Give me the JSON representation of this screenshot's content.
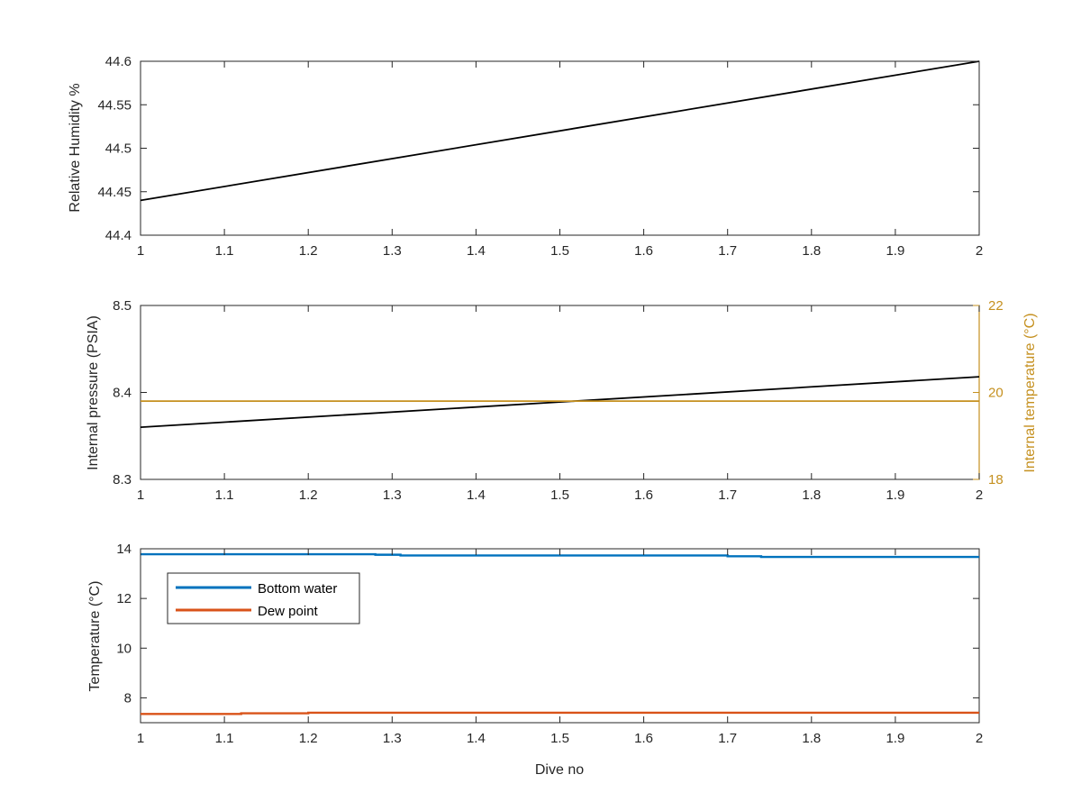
{
  "chart_data": [
    {
      "type": "line",
      "xlabel": "",
      "ylabel": "Relative Humidity %",
      "xlim": [
        1,
        2
      ],
      "ylim": [
        44.4,
        44.6
      ],
      "xticks": [
        "1",
        "1.1",
        "1.2",
        "1.3",
        "1.4",
        "1.5",
        "1.6",
        "1.7",
        "1.8",
        "1.9",
        "2"
      ],
      "yticks": [
        "44.4",
        "44.45",
        "44.5",
        "44.55",
        "44.6"
      ],
      "grid": false,
      "legend": null,
      "series": [
        {
          "color": "#000000",
          "x": [
            1,
            2
          ],
          "y": [
            44.44,
            44.6
          ]
        }
      ]
    },
    {
      "type": "line",
      "xlabel": "",
      "ylabel": "Internal pressure (PSIA)",
      "ylabel_right": "Internal temperature (°C)",
      "xlim": [
        1,
        2
      ],
      "ylim": [
        8.3,
        8.5
      ],
      "ylim_right": [
        18,
        22
      ],
      "xticks": [
        "1",
        "1.1",
        "1.2",
        "1.3",
        "1.4",
        "1.5",
        "1.6",
        "1.7",
        "1.8",
        "1.9",
        "2"
      ],
      "yticks": [
        "8.3",
        "8.4",
        "8.5"
      ],
      "yticks_right": [
        "18",
        "20",
        "22"
      ],
      "right_axis_color": "#c5901f",
      "grid": false,
      "legend": null,
      "series": [
        {
          "axis": "left",
          "color": "#000000",
          "x": [
            1,
            2
          ],
          "y": [
            8.36,
            8.418
          ]
        },
        {
          "axis": "right",
          "color": "#c5901f",
          "x": [
            1,
            2
          ],
          "y": [
            19.8,
            19.8
          ]
        }
      ]
    },
    {
      "type": "line",
      "xlabel": "Dive no",
      "ylabel": "Temperature (°C)",
      "xlim": [
        1,
        2
      ],
      "ylim": [
        7,
        14
      ],
      "xticks": [
        "1",
        "1.1",
        "1.2",
        "1.3",
        "1.4",
        "1.5",
        "1.6",
        "1.7",
        "1.8",
        "1.9",
        "2"
      ],
      "yticks": [
        "8",
        "10",
        "12",
        "14"
      ],
      "grid": false,
      "legend": "top-left",
      "series": [
        {
          "name": "Bottom water",
          "color": "#0072bd",
          "x": [
            1,
            1.28,
            1.28,
            1.31,
            1.31,
            1.7,
            1.7,
            1.74,
            1.74,
            2
          ],
          "y": [
            13.78,
            13.78,
            13.76,
            13.76,
            13.73,
            13.73,
            13.7,
            13.7,
            13.67,
            13.67
          ]
        },
        {
          "name": "Dew point",
          "color": "#d95319",
          "x": [
            1,
            1.12,
            1.12,
            1.2,
            1.2,
            2
          ],
          "y": [
            7.35,
            7.35,
            7.38,
            7.38,
            7.4,
            7.4
          ]
        }
      ]
    }
  ]
}
